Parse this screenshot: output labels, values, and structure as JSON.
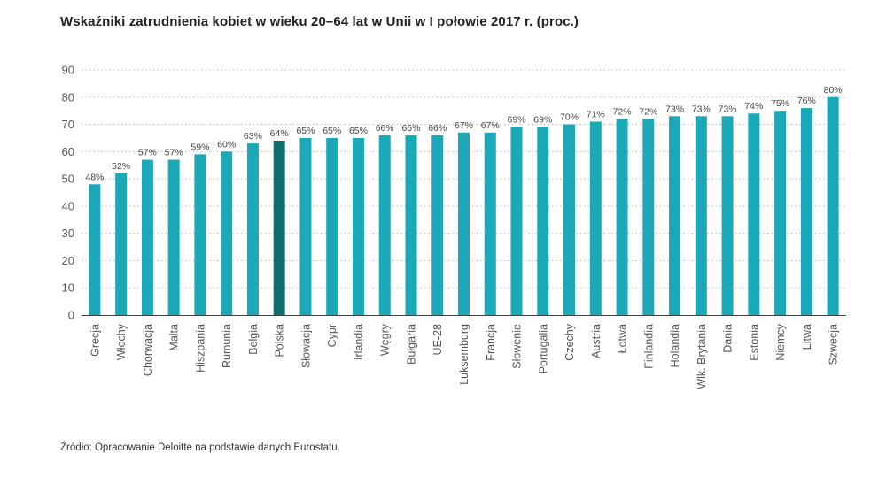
{
  "title": "Wskaźniki zatrudnienia kobiet w wieku 20–64 lat w Unii w I połowie 2017 r. (proc.)",
  "source": "Źródło: Opracowanie Deloitte na podstawie danych Eurostatu.",
  "colors": {
    "bar": "#1ba8b8",
    "highlight": "#0d6e6e",
    "grid": "#bbbbbb",
    "axis": "#444444"
  },
  "chart_data": {
    "type": "bar",
    "title": "Wskaźniki zatrudnienia kobiet w wieku 20–64 lat w Unii w I połowie 2017 r. (proc.)",
    "xlabel": "",
    "ylabel": "",
    "ylim": [
      0,
      90
    ],
    "yticks": [
      0,
      10,
      20,
      30,
      40,
      50,
      60,
      70,
      80,
      90
    ],
    "grid": true,
    "highlight_category": "Polska",
    "categories": [
      "Grecja",
      "Włochy",
      "Chorwacja",
      "Malta",
      "Hiszpania",
      "Rumunia",
      "Belgia",
      "Polska",
      "Słowacja",
      "Cypr",
      "Irlandia",
      "Węgry",
      "Bułgaria",
      "UE-28",
      "Luksemburg",
      "Francja",
      "Słowenie",
      "Portugalia",
      "Czechy",
      "Austria",
      "Łotwa",
      "Finlandia",
      "Holandia",
      "Wlk. Brytania",
      "Dania",
      "Estonia",
      "Niemcy",
      "Litwa",
      "Szwecja"
    ],
    "values": [
      48,
      52,
      57,
      57,
      59,
      60,
      63,
      64,
      65,
      65,
      65,
      66,
      66,
      66,
      67,
      67,
      69,
      69,
      70,
      71,
      72,
      72,
      73,
      73,
      73,
      74,
      75,
      76,
      80
    ],
    "value_labels": [
      "48%",
      "52%",
      "57%",
      "57%",
      "59%",
      "60%",
      "63%",
      "64%",
      "65%",
      "65%",
      "65%",
      "66%",
      "66%",
      "66%",
      "67%",
      "67%",
      "69%",
      "69%",
      "70%",
      "71%",
      "72%",
      "72%",
      "73%",
      "73%",
      "73%",
      "74%",
      "75%",
      "76%",
      "80%"
    ]
  }
}
